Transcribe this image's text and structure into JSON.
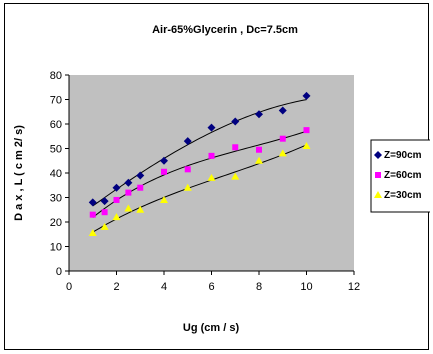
{
  "chart_data": {
    "type": "scatter",
    "title": "Air-65%Glycerin , Dc=7.5cm",
    "xlabel": "Ug (cm / s)",
    "ylabel": "D a x , L  ( c m 2/ s)",
    "xlim": [
      0,
      12
    ],
    "ylim": [
      0,
      80
    ],
    "xticks": [
      "0",
      "2",
      "4",
      "6",
      "8",
      "10",
      "12"
    ],
    "yticks": [
      "0",
      "10",
      "20",
      "30",
      "40",
      "50",
      "60",
      "70",
      "80"
    ],
    "grid": false,
    "trendlines": true,
    "legend_position": "right",
    "series": [
      {
        "name": "Z=90cm",
        "marker": "diamond",
        "color": "#000080",
        "x": [
          1,
          1.5,
          2,
          2.5,
          3,
          4,
          5,
          6,
          7,
          8,
          9,
          10
        ],
        "y": [
          28,
          28.5,
          34,
          36,
          39,
          45,
          53,
          58.5,
          61,
          64,
          65.5,
          71.5
        ]
      },
      {
        "name": "Z=60cm",
        "marker": "square",
        "color": "#ff00ff",
        "x": [
          1,
          1.5,
          2,
          2.5,
          3,
          4,
          5,
          6,
          7,
          8,
          9,
          10
        ],
        "y": [
          23,
          24,
          29,
          32,
          34,
          40.5,
          41.5,
          47,
          50.5,
          49.5,
          54,
          57.5
        ]
      },
      {
        "name": "Z=30cm",
        "marker": "triangle",
        "color": "#ffff00",
        "x": [
          1,
          1.5,
          2,
          2.5,
          3,
          4,
          5,
          6,
          7,
          8,
          9,
          10
        ],
        "y": [
          15.5,
          18,
          22,
          25.5,
          25,
          29,
          34,
          38,
          38.5,
          45,
          48,
          51
        ]
      }
    ]
  }
}
